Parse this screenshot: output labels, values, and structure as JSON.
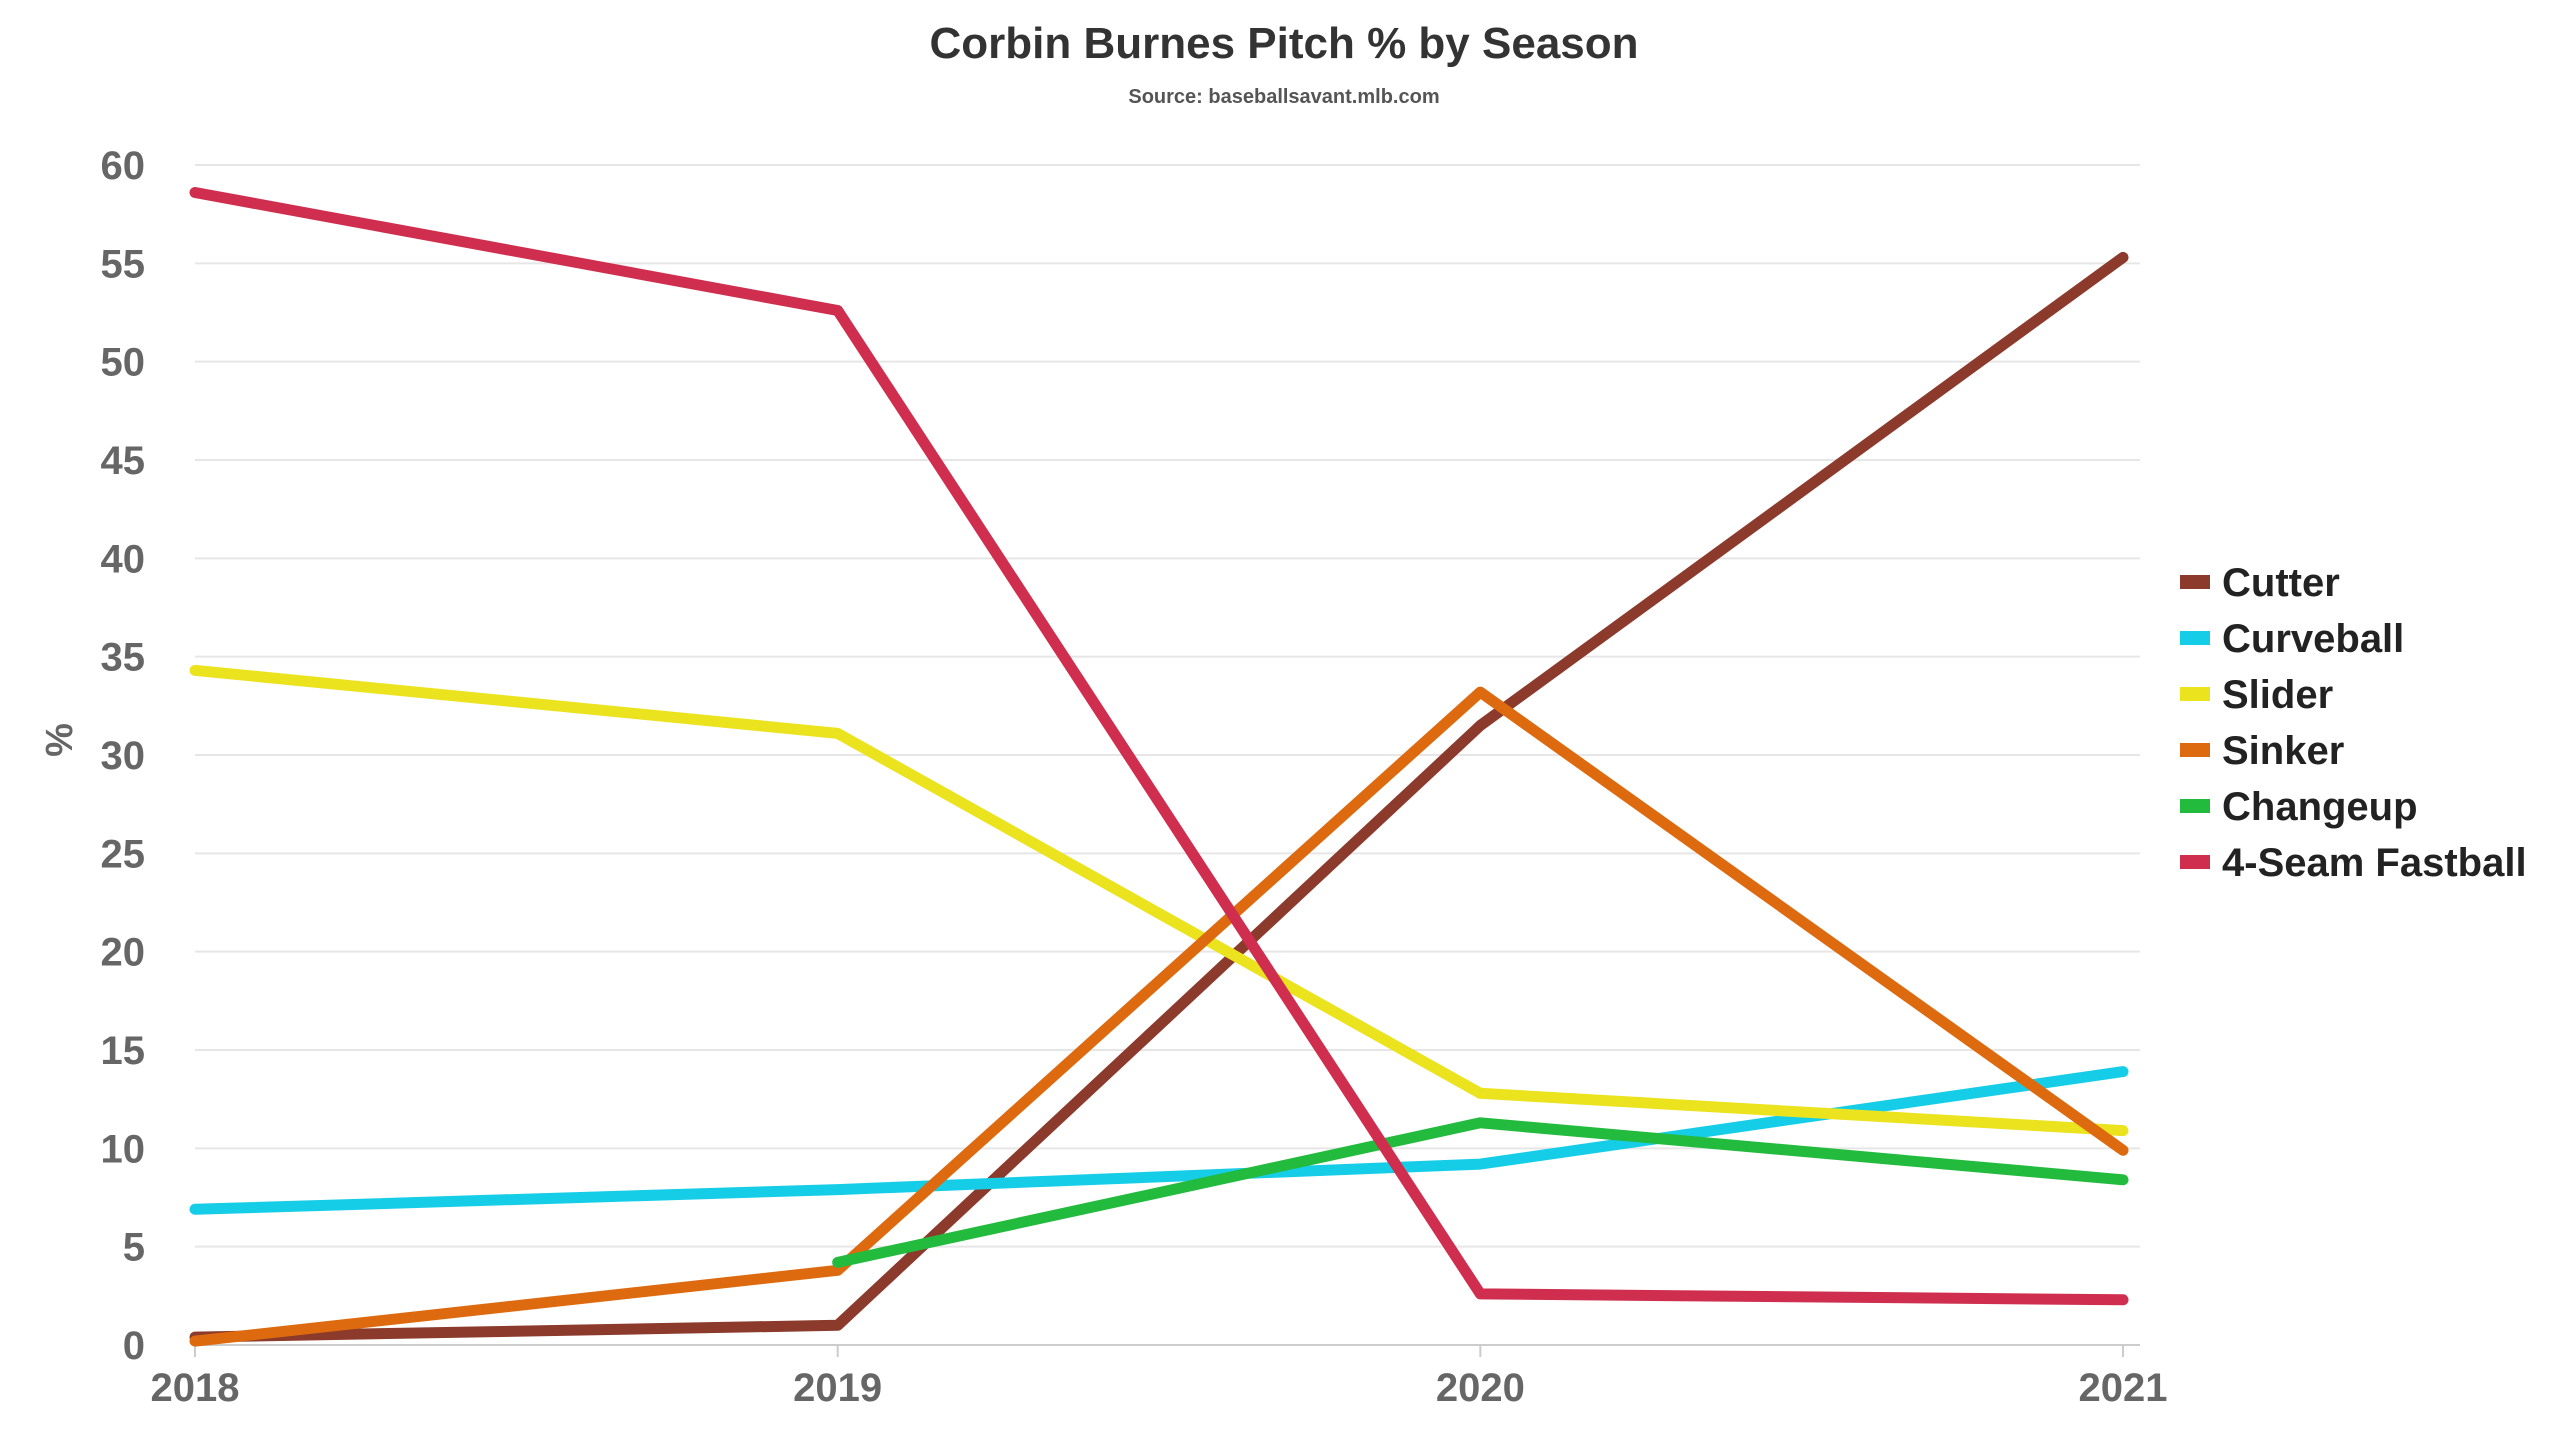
{
  "chart_data": {
    "type": "line",
    "title": "Corbin Burnes Pitch % by Season",
    "subtitle": "Source: baseballsavant.mlb.com",
    "xlabel": "",
    "ylabel": "%",
    "x": [
      "2018",
      "2019",
      "2020",
      "2021"
    ],
    "ylim": [
      0,
      60
    ],
    "yticks": [
      0,
      5,
      10,
      15,
      20,
      25,
      30,
      35,
      40,
      45,
      50,
      55,
      60
    ],
    "grid": true,
    "legend_position": "right",
    "series": [
      {
        "name": "Cutter",
        "color": "#8b3a2b",
        "values": [
          0.4,
          1.0,
          31.5,
          55.3
        ]
      },
      {
        "name": "Curveball",
        "color": "#16cde8",
        "values": [
          6.9,
          7.9,
          9.2,
          13.9
        ]
      },
      {
        "name": "Slider",
        "color": "#ebe31e",
        "values": [
          34.3,
          31.1,
          12.8,
          10.9
        ]
      },
      {
        "name": "Sinker",
        "color": "#dd6a0f",
        "values": [
          0.2,
          3.8,
          33.2,
          9.9
        ]
      },
      {
        "name": "Changeup",
        "color": "#22bb3d",
        "values": [
          null,
          4.2,
          11.3,
          8.4
        ]
      },
      {
        "name": "4-Seam Fastball",
        "color": "#cf2e4e",
        "values": [
          58.6,
          52.6,
          2.6,
          2.3
        ]
      }
    ]
  }
}
